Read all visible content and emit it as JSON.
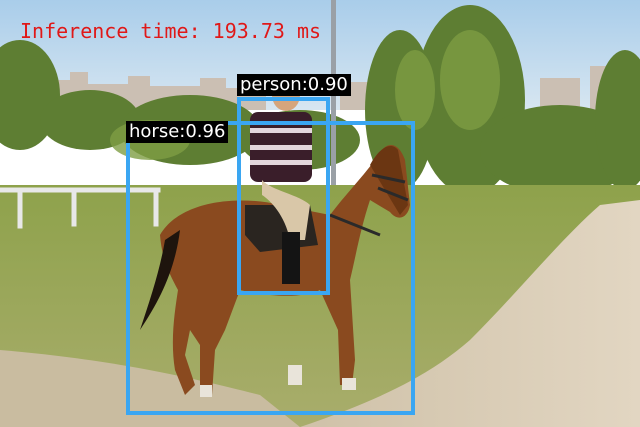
{
  "overlay": {
    "inference_text": "Inference time: 193.73 ms",
    "inference_color": "#e01818"
  },
  "detections": [
    {
      "label": "horse:0.96",
      "class": "horse",
      "score": 0.96
    },
    {
      "label": "person:0.90",
      "class": "person",
      "score": 0.9
    }
  ],
  "colors": {
    "box": "#3aa6f2",
    "label_bg": "#000000",
    "label_text": "#ffffff"
  }
}
